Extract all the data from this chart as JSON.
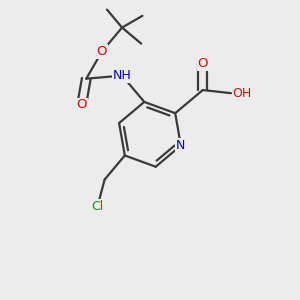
{
  "bg_color": "#ececec",
  "atom_colors": {
    "C": "#3a3a3a",
    "N": "#0000cc",
    "O": "#ee0000",
    "Cl": "#1e8b1e",
    "H": "#607060"
  },
  "bond_color": "#3a3a3a",
  "bond_width": 1.6
}
